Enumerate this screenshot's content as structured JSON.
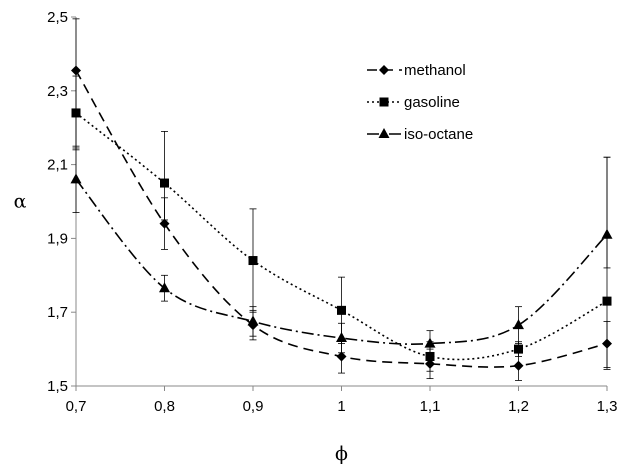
{
  "chart_data": {
    "type": "line",
    "title": "",
    "xlabel": "ϕ",
    "ylabel": "α",
    "x": [
      0.7,
      0.8,
      0.9,
      1.0,
      1.1,
      1.2,
      1.3
    ],
    "x_tick_labels": [
      "0,7",
      "0,8",
      "0,9",
      "1",
      "1,1",
      "1,2",
      "1,3"
    ],
    "y_tick_values": [
      1.5,
      1.7,
      1.9,
      2.1,
      2.3,
      2.5
    ],
    "y_tick_labels": [
      "1,5",
      "1,7",
      "1,9",
      "2,1",
      "2,3",
      "2,5"
    ],
    "xlim": [
      0.7,
      1.3
    ],
    "ylim": [
      1.5,
      2.5
    ],
    "grid": false,
    "legend_position": "top-right",
    "series": [
      {
        "name": "methanol",
        "marker": "diamond",
        "line_style": "dashed",
        "values": [
          2.355,
          1.94,
          1.665,
          1.58,
          1.56,
          1.555,
          1.615
        ],
        "err_low": [
          0.21,
          0.07,
          0.04,
          0.045,
          0.04,
          0.04,
          0.07
        ],
        "err_high": [
          0.14,
          0.07,
          0.04,
          0.045,
          0.04,
          0.04,
          0.06
        ]
      },
      {
        "name": "gasoline",
        "marker": "square",
        "line_style": "dotted",
        "values": [
          2.24,
          2.05,
          1.84,
          1.705,
          1.58,
          1.6,
          1.73
        ],
        "err_low": [
          0.1,
          0.1,
          0.14,
          0.09,
          0.04,
          0.02,
          0.18
        ],
        "err_high": [
          0.1,
          0.14,
          0.14,
          0.09,
          0.04,
          0.02,
          0.39
        ]
      },
      {
        "name": "iso-octane",
        "marker": "triangle",
        "line_style": "dash-dot",
        "values": [
          2.06,
          1.765,
          1.675,
          1.63,
          1.615,
          1.665,
          1.91
        ],
        "err_low": [
          0.09,
          0.035,
          0.04,
          0.04,
          0.035,
          0.05,
          0.09
        ],
        "err_high": [
          0.09,
          0.035,
          0.04,
          0.04,
          0.035,
          0.05,
          0.21
        ]
      }
    ]
  }
}
